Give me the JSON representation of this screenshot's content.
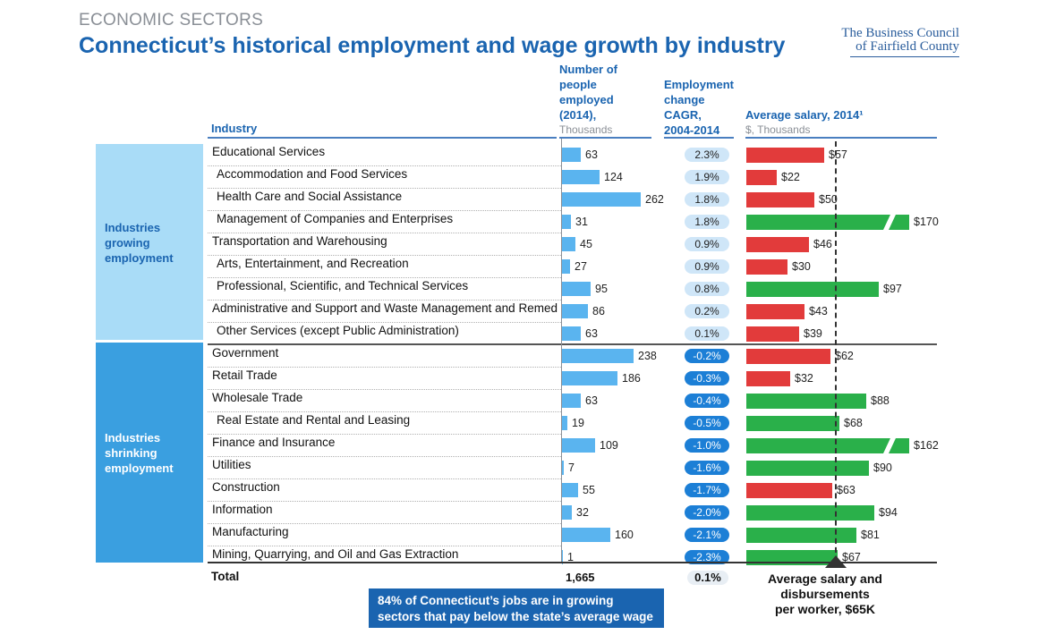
{
  "header": {
    "eyebrow": "ECONOMIC SECTORS",
    "title": "Connecticut’s historical employment and wage growth by industry",
    "logo_line1": "The Business Council",
    "logo_line2": "of Fairfield County"
  },
  "columns": {
    "industry": "Industry",
    "employed_l1": "Number of",
    "employed_l2": "people",
    "employed_l3": "employed",
    "employed_l4": "(2014),",
    "employed_unit": "Thousands",
    "cagr_l1": "Employment",
    "cagr_l2": "change",
    "cagr_l3": "CAGR,",
    "cagr_l4": "2004-2014",
    "salary_l1": "Average salary, 2014¹",
    "salary_unit": "$, Thousands"
  },
  "groups": {
    "growing_l1": "Industries",
    "growing_l2": "growing",
    "growing_l3": "employment",
    "shrinking_l1": "Industries",
    "shrinking_l2": "shrinking",
    "shrinking_l3": "employment"
  },
  "totals": {
    "label": "Total",
    "employed": "1,665",
    "cagr": "0.1%"
  },
  "callout_line1": "84% of Connecticut’s jobs are in growing",
  "callout_line2": "sectors that pay below the state’s average wage",
  "avg_note_l1": "Average salary and",
  "avg_note_l2": "disbursements",
  "avg_note_l3": "per worker, $65K",
  "colors": {
    "title": "#1a64b0",
    "employment_bar": "#5ab4ef",
    "salary_below_avg": "#e23b3b",
    "salary_above_avg": "#2ab04a",
    "growing_box": "#a9dcf7",
    "shrinking_box": "#3a9fe0",
    "cagr_positive": "#cfe6f8",
    "cagr_negative": "#1c7fd6"
  },
  "chart_data": {
    "type": "bar",
    "average_salary_reference": 65,
    "rows": [
      {
        "industry": "Educational Services",
        "group": "growing",
        "employed": 63,
        "cagr": "2.3%",
        "salary": 57,
        "salary_label": "$57"
      },
      {
        "industry": "Accommodation and Food Services",
        "group": "growing",
        "employed": 124,
        "cagr": "1.9%",
        "salary": 22,
        "salary_label": "$22"
      },
      {
        "industry": "Health Care and Social Assistance",
        "group": "growing",
        "employed": 262,
        "cagr": "1.8%",
        "salary": 50,
        "salary_label": "$50"
      },
      {
        "industry": "Management of Companies and Enterprises",
        "group": "growing",
        "employed": 31,
        "cagr": "1.8%",
        "salary": 170,
        "salary_label": "$170",
        "broken": true
      },
      {
        "industry": "Transportation and Warehousing",
        "group": "growing",
        "employed": 45,
        "cagr": "0.9%",
        "salary": 46,
        "salary_label": "$46"
      },
      {
        "industry": "Arts, Entertainment, and Recreation",
        "group": "growing",
        "employed": 27,
        "cagr": "0.9%",
        "salary": 30,
        "salary_label": "$30"
      },
      {
        "industry": "Professional, Scientific, and Technical Services",
        "group": "growing",
        "employed": 95,
        "cagr": "0.8%",
        "salary": 97,
        "salary_label": "$97"
      },
      {
        "industry": "Administrative and Support and Waste Management and Remed",
        "group": "growing",
        "employed": 86,
        "cagr": "0.2%",
        "salary": 43,
        "salary_label": "$43"
      },
      {
        "industry": "Other Services (except Public Administration)",
        "group": "growing",
        "employed": 63,
        "cagr": "0.1%",
        "salary": 39,
        "salary_label": "$39"
      },
      {
        "industry": "Government",
        "group": "shrinking",
        "employed": 238,
        "cagr": "-0.2%",
        "salary": 62,
        "salary_label": "$62"
      },
      {
        "industry": "Retail Trade",
        "group": "shrinking",
        "employed": 186,
        "cagr": "-0.3%",
        "salary": 32,
        "salary_label": "$32"
      },
      {
        "industry": "Wholesale Trade",
        "group": "shrinking",
        "employed": 63,
        "cagr": "-0.4%",
        "salary": 88,
        "salary_label": "$88"
      },
      {
        "industry": "Real Estate and Rental and Leasing",
        "group": "shrinking",
        "employed": 19,
        "cagr": "-0.5%",
        "salary": 68,
        "salary_label": "$68"
      },
      {
        "industry": "Finance and Insurance",
        "group": "shrinking",
        "employed": 109,
        "cagr": "-1.0%",
        "salary": 162,
        "salary_label": "$162",
        "broken": true
      },
      {
        "industry": "Utilities",
        "group": "shrinking",
        "employed": 7,
        "cagr": "-1.6%",
        "salary": 90,
        "salary_label": "$90"
      },
      {
        "industry": "Construction",
        "group": "shrinking",
        "employed": 55,
        "cagr": "-1.7%",
        "salary": 63,
        "salary_label": "$63"
      },
      {
        "industry": "Information",
        "group": "shrinking",
        "employed": 32,
        "cagr": "-2.0%",
        "salary": 94,
        "salary_label": "$94"
      },
      {
        "industry": "Manufacturing",
        "group": "shrinking",
        "employed": 160,
        "cagr": "-2.1%",
        "salary": 81,
        "salary_label": "$81"
      },
      {
        "industry": "Mining, Quarrying, and Oil and Gas Extraction",
        "group": "shrinking",
        "employed": 1,
        "cagr": "-2.3%",
        "salary": 67,
        "salary_label": "$67"
      }
    ]
  }
}
